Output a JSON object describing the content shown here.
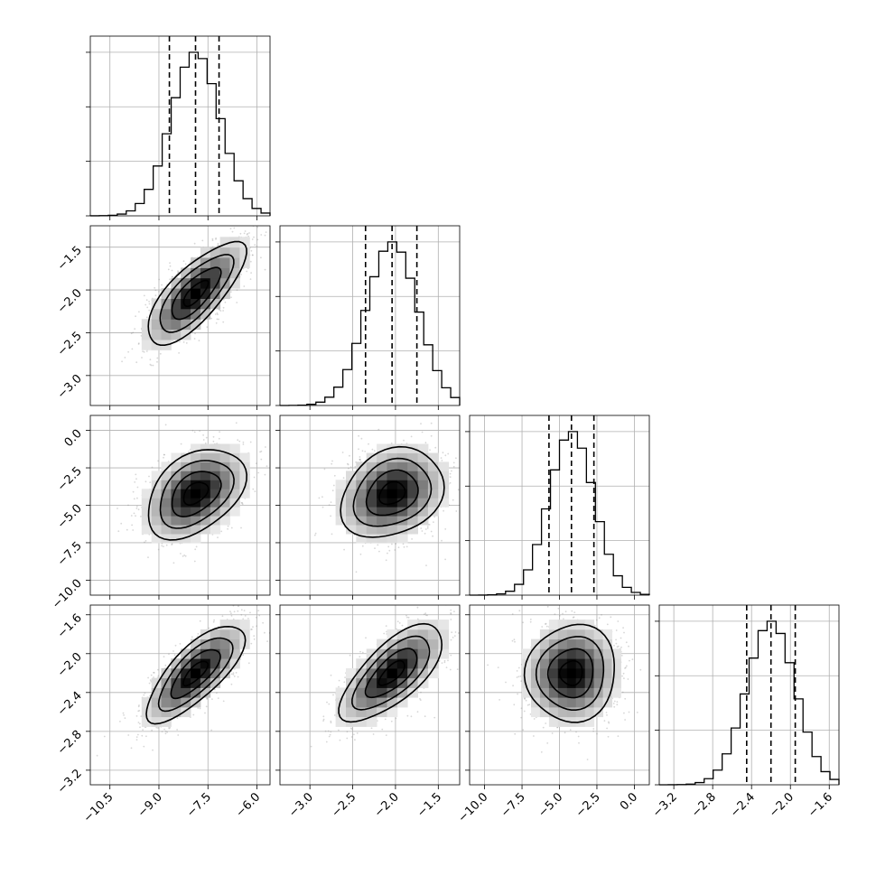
{
  "colors": {
    "ink": "#000000",
    "grid": "#b0b0b0",
    "frame": "#000000",
    "scatter": "#8c8c8c"
  },
  "chart_data": {
    "type": "corner",
    "n_parameters": 4,
    "parameters": [
      {
        "index": 0,
        "label": "",
        "range": [
          -11.1,
          -5.6
        ],
        "median": -7.88,
        "q16": -8.68,
        "q84": -7.16,
        "sigma": 0.75,
        "ticks": [
          -10.5,
          -9.0,
          -7.5,
          -6.0
        ],
        "tick_labels": [
          "−10.5",
          "−9.0",
          "−7.5",
          "−6.0"
        ]
      },
      {
        "index": 1,
        "label": "",
        "range": [
          -3.35,
          -1.25
        ],
        "median": -2.04,
        "q16": -2.35,
        "q84": -1.75,
        "sigma": 0.3,
        "ticks": [
          -3.0,
          -2.5,
          -2.0,
          -1.5
        ],
        "tick_labels": [
          "−3.0",
          "−2.5",
          "−2.0",
          "−1.5"
        ]
      },
      {
        "index": 2,
        "label": "",
        "range": [
          -11.0,
          1.0
        ],
        "median": -4.2,
        "q16": -5.7,
        "q84": -2.7,
        "sigma": 1.5,
        "ticks": [
          -10.0,
          -7.5,
          -5.0,
          -2.5,
          0.0
        ],
        "tick_labels": [
          "−10.0",
          "−7.5",
          "−5.0",
          "−2.5",
          "0.0"
        ]
      },
      {
        "index": 3,
        "label": "",
        "range": [
          -3.35,
          -1.5
        ],
        "median": -2.2,
        "q16": -2.45,
        "q84": -1.95,
        "sigma": 0.25,
        "ticks": [
          -3.2,
          -2.8,
          -2.4,
          -2.0,
          -1.6
        ],
        "tick_labels": [
          "−3.2",
          "−2.8",
          "−2.4",
          "−2.0",
          "−1.6"
        ]
      }
    ],
    "correlations": [
      {
        "i": 1,
        "j": 0,
        "rho": 0.75
      },
      {
        "i": 2,
        "j": 0,
        "rho": 0.4
      },
      {
        "i": 2,
        "j": 1,
        "rho": 0.25
      },
      {
        "i": 3,
        "j": 0,
        "rho": 0.75
      },
      {
        "i": 3,
        "j": 1,
        "rho": 0.7
      },
      {
        "i": 3,
        "j": 2,
        "rho": 0.05
      }
    ],
    "contour_levels_sigma": [
      0.5,
      1.0,
      1.5,
      2.0
    ],
    "histogram_bins": 20,
    "quantile_line_style": "dashed",
    "grid": true
  }
}
